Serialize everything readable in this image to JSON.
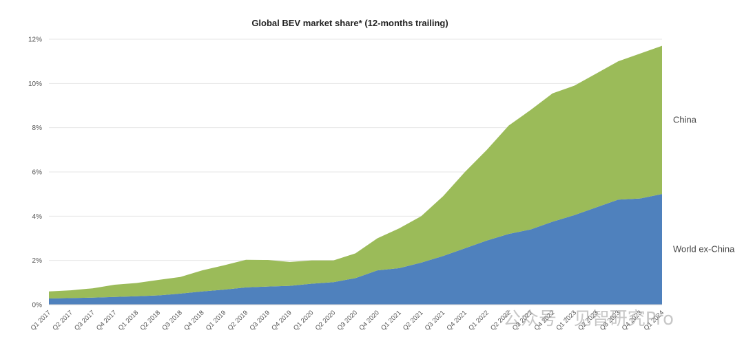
{
  "chart_data": {
    "type": "area",
    "title": "Global BEV market share* (12-months trailing)",
    "xlabel": "",
    "ylabel": "",
    "stacked": true,
    "ylim": [
      0,
      12
    ],
    "yticks": [
      "0%",
      "2%",
      "4%",
      "6%",
      "8%",
      "10%",
      "12%"
    ],
    "grid": true,
    "legend_placement": "right, inline labels",
    "categories": [
      "Q1 2017",
      "Q2 2017",
      "Q3 2017",
      "Q4 2017",
      "Q1 2018",
      "Q2 2018",
      "Q3 2018",
      "Q4 2018",
      "Q1 2019",
      "Q2 2019",
      "Q3 2019",
      "Q4 2019",
      "Q1 2020",
      "Q2 2020",
      "Q3 2020",
      "Q4 2020",
      "Q1 2021",
      "Q2 2021",
      "Q3 2021",
      "Q4 2021",
      "Q1 2022",
      "Q2 2022",
      "Q3 2022",
      "Q4 2022",
      "Q1 2023",
      "Q2 2023",
      "Q3 2023",
      "Q4 2023",
      "Q1 2024"
    ],
    "series": [
      {
        "name": "World ex-China",
        "color": "#4f81bd",
        "values": [
          0.28,
          0.3,
          0.32,
          0.35,
          0.38,
          0.42,
          0.5,
          0.6,
          0.68,
          0.78,
          0.82,
          0.85,
          0.95,
          1.02,
          1.2,
          1.55,
          1.65,
          1.9,
          2.2,
          2.55,
          2.9,
          3.2,
          3.4,
          3.75,
          4.05,
          4.4,
          4.75,
          4.8,
          5.0
        ]
      },
      {
        "name": "China",
        "color": "#9bbb59",
        "values": [
          0.32,
          0.35,
          0.42,
          0.55,
          0.6,
          0.7,
          0.75,
          0.95,
          1.1,
          1.25,
          1.2,
          1.08,
          1.05,
          0.98,
          1.12,
          1.45,
          1.8,
          2.1,
          2.7,
          3.45,
          4.1,
          4.9,
          5.4,
          5.8,
          5.85,
          6.05,
          6.25,
          6.55,
          6.7
        ]
      }
    ]
  },
  "watermark": "公众号 · 见智研究Pro"
}
